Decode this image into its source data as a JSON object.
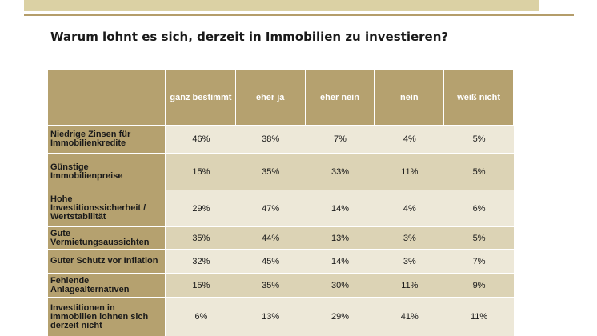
{
  "title": "Warum lohnt es sich, derzeit in Immobilien zu investieren?",
  "table": {
    "headers": [
      "ganz bestimmt",
      "eher ja",
      "eher nein",
      "nein",
      "weiß nicht"
    ],
    "rows": [
      {
        "label": "Niedrige Zinsen für Immobilienkredite",
        "values": [
          "46%",
          "38%",
          "7%",
          "4%",
          "5%"
        ]
      },
      {
        "label": "Günstige Immobilienpreise",
        "values": [
          "15%",
          "35%",
          "33%",
          "11%",
          "5%"
        ]
      },
      {
        "label": "Hohe Investitionssicherheit / Wertstabilität",
        "values": [
          "29%",
          "47%",
          "14%",
          "4%",
          "6%"
        ]
      },
      {
        "label": "Gute Vermietungsaussichten",
        "values": [
          "35%",
          "44%",
          "13%",
          "3%",
          "5%"
        ]
      },
      {
        "label": "Guter Schutz vor Inflation",
        "values": [
          "32%",
          "45%",
          "14%",
          "3%",
          "7%"
        ]
      },
      {
        "label": "Fehlende Anlagealternativen",
        "values": [
          "15%",
          "35%",
          "30%",
          "11%",
          "9%"
        ]
      },
      {
        "label": "Investitionen in Immobilien lohnen sich derzeit nicht",
        "values": [
          "6%",
          "13%",
          "29%",
          "41%",
          "11%"
        ]
      }
    ]
  },
  "colors": {
    "header_bg": "#b5a16f",
    "row_light": "#ede8d8",
    "row_dark": "#dcd3b5",
    "top_band": "#dbd1a4",
    "rule": "#b49d6a"
  }
}
